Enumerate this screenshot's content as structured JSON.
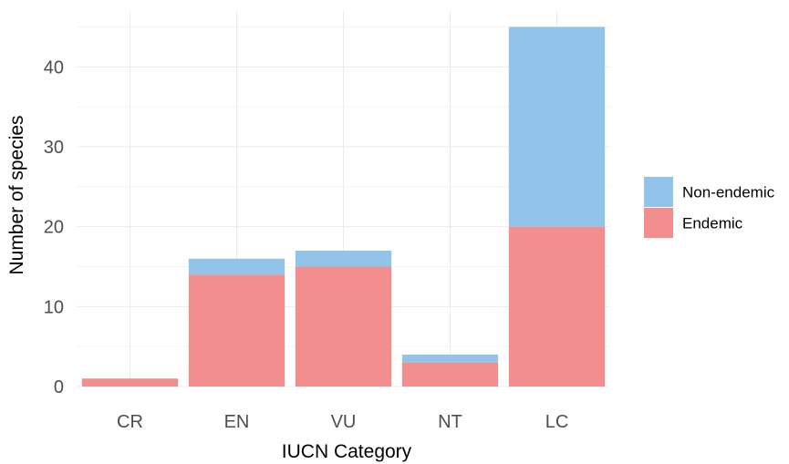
{
  "chart_data": {
    "type": "bar",
    "stacked": true,
    "title": "",
    "xlabel": "IUCN Category",
    "ylabel": "Number of species",
    "categories": [
      "CR",
      "EN",
      "VU",
      "NT",
      "LC"
    ],
    "series": [
      {
        "name": "Endemic",
        "color": "#f28e8e",
        "values": [
          1,
          14,
          15,
          3,
          20
        ]
      },
      {
        "name": "Non-endemic",
        "color": "#92c4ea",
        "values": [
          0,
          2,
          2,
          1,
          25
        ]
      }
    ],
    "ylim": [
      0,
      47
    ],
    "yticks": [
      0,
      10,
      20,
      30,
      40
    ],
    "grid": true,
    "legend": {
      "position": "right",
      "order": [
        "Non-endemic",
        "Endemic"
      ]
    }
  }
}
